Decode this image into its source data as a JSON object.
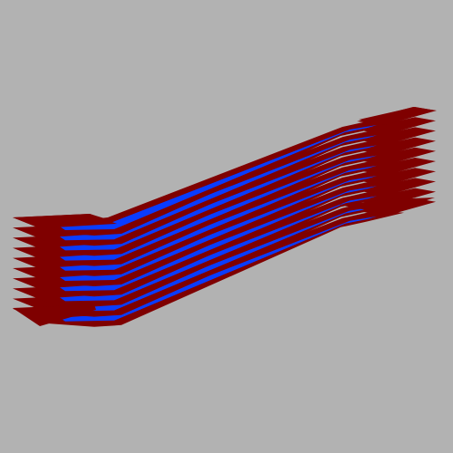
{
  "scene": {
    "background_color": "#b2b2b2",
    "object": "dogbone-specimen-slices",
    "slice_count": 10,
    "colormap": [
      "#000090",
      "#0070ff",
      "#00f0ff",
      "#f5ff0a",
      "#ff9000",
      "#ff1400",
      "#7f0000"
    ],
    "outer_color": "#7f0000"
  }
}
